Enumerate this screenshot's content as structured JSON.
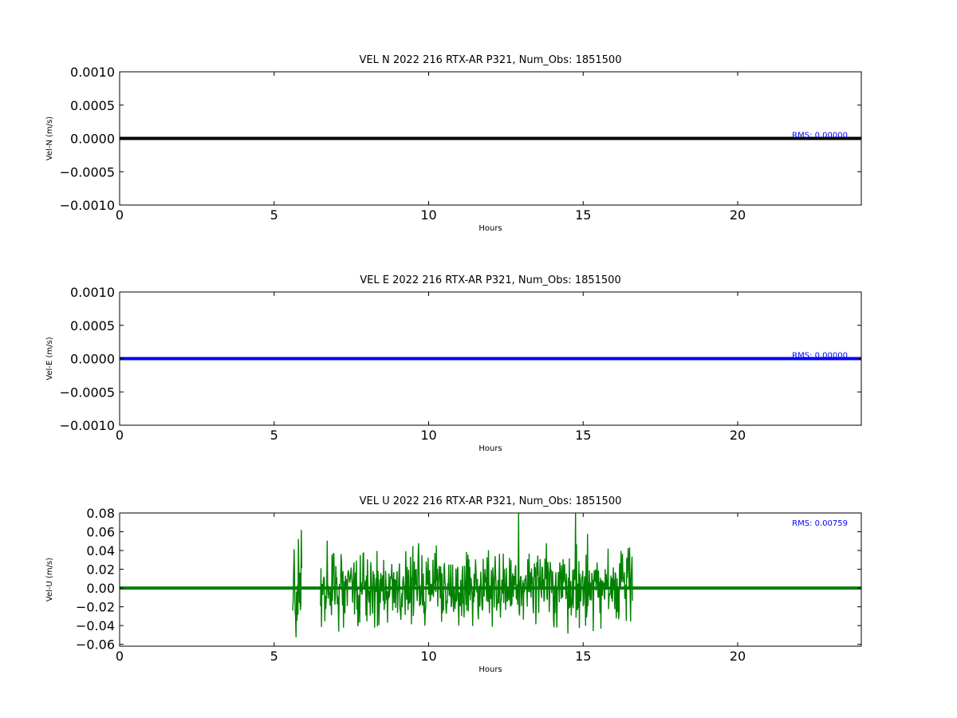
{
  "chart_data": [
    {
      "type": "line",
      "title": "VEL N 2022 216 RTX-AR  P321, Num_Obs: 1851500",
      "xlabel": "Hours",
      "ylabel": "Vel-N (m/s)",
      "xlim": [
        0,
        24
      ],
      "ylim": [
        -0.001,
        0.001
      ],
      "x_ticks": [
        "0",
        "5",
        "10",
        "15",
        "20"
      ],
      "y_ticks": [
        "0.0010",
        "0.0005",
        "0.0000",
        "−0.0005",
        "−0.0010"
      ],
      "grid": false,
      "series": [
        {
          "color": "#000000",
          "x": [
            0,
            24
          ],
          "y": [
            0.0,
            0.0
          ]
        }
      ],
      "annotation": "RMS:  0.00000",
      "annotation_color": "#0000ff"
    },
    {
      "type": "line",
      "title": "VEL E 2022 216 RTX-AR  P321, Num_Obs: 1851500",
      "xlabel": "Hours",
      "ylabel": "Vel-E (m/s)",
      "xlim": [
        0,
        24
      ],
      "ylim": [
        -0.001,
        0.001
      ],
      "x_ticks": [
        "0",
        "5",
        "10",
        "15",
        "20"
      ],
      "y_ticks": [
        "0.0010",
        "0.0005",
        "0.0000",
        "−0.0005",
        "−0.0010"
      ],
      "grid": false,
      "series": [
        {
          "color": "#0000ff",
          "x": [
            0,
            24
          ],
          "y": [
            0.0,
            0.0
          ]
        }
      ],
      "annotation": "RMS:  0.00000",
      "annotation_color": "#0000ff"
    },
    {
      "type": "line",
      "title": "VEL U 2022 216 RTX-AR  P321, Num_Obs: 1851500",
      "xlabel": "Hours",
      "ylabel": "Vel-U (m/s)",
      "xlim": [
        0,
        24
      ],
      "ylim": [
        -0.062,
        0.08
      ],
      "x_ticks": [
        "0",
        "5",
        "10",
        "15",
        "20"
      ],
      "y_ticks": [
        "0.08",
        "0.06",
        "0.04",
        "0.02",
        "0.00",
        "−0.02",
        "−0.04",
        "−0.06"
      ],
      "grid": false,
      "series": [
        {
          "color": "#008000",
          "baseline": 0.0,
          "noise_segments": [
            {
              "x_start": 5.6,
              "x_end": 5.9,
              "amplitude": 0.03
            },
            {
              "x_start": 6.5,
              "x_end": 16.6,
              "amplitude": 0.02
            }
          ],
          "envelope": {
            "max": 0.08,
            "min": -0.061
          }
        }
      ],
      "annotation": "RMS:  0.00759",
      "annotation_color": "#0000ff"
    }
  ]
}
